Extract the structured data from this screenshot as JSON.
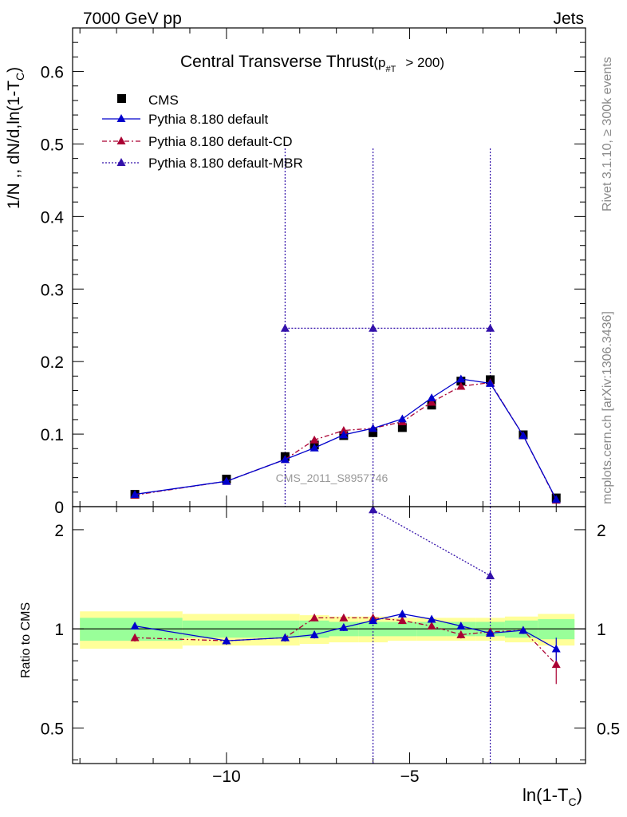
{
  "header": {
    "left": "7000 GeV pp",
    "right": "Jets"
  },
  "side_text": {
    "rivet": "Rivet 3.1.10, ≥ 300k events",
    "site": "mcplots.cern.ch [arXiv:1306.3436]"
  },
  "watermark": "CMS_2011_S8957746",
  "title": {
    "main": "Central Transverse Thrust",
    "paren_open": "(p",
    "sub": "#T",
    "rest": "> 200)"
  },
  "axis": {
    "ylabel_main": "1/N ,, dN/d,ln(1-T",
    "ylabel_sub": "C",
    "ylabel_close": ")",
    "xlabel_main": "ln(1-T",
    "xlabel_sub": "C",
    "xlabel_close": ")",
    "ratio_ylabel": "Ratio to CMS"
  },
  "legend": [
    {
      "label": "CMS",
      "style": "square",
      "color": "#000000"
    },
    {
      "label": "Pythia 8.180 default",
      "style": "solid",
      "color": "#0000cc"
    },
    {
      "label": "Pythia 8.180 default-CD",
      "style": "dashdot",
      "color": "#aa0033"
    },
    {
      "label": "Pythia 8.180 default-MBR",
      "style": "dotted",
      "color": "#3311aa"
    }
  ],
  "chart_data": {
    "type": "line",
    "title": "Central Transverse Thrust (p_T > 200)",
    "xlabel": "ln(1-T_C)",
    "ylabel": "1/N dN/d ln(1-T_C)",
    "xlim": [
      -14.2,
      -0.2
    ],
    "ylim": [
      0,
      0.66
    ],
    "ratio_ylim": [
      0.39,
      2.35
    ],
    "xticks": [
      -10,
      -5
    ],
    "yticks": [
      0,
      0.1,
      0.2,
      0.3,
      0.4,
      0.5,
      0.6
    ],
    "ytick_labels": [
      "0",
      "0.1",
      "0.2",
      "0.3",
      "0.4",
      "0.5",
      "0.6"
    ],
    "ratio_yticks": [
      0.5,
      1,
      2
    ],
    "ratio_ytick_labels": [
      "0.5",
      "1",
      "2"
    ],
    "x": [
      -12.5,
      -10.0,
      -8.4,
      -7.6,
      -6.8,
      -6.0,
      -5.2,
      -4.4,
      -3.6,
      -2.8,
      -1.9,
      -1.0
    ],
    "series": [
      {
        "name": "CMS",
        "values": [
          0.017,
          0.038,
          0.069,
          0.085,
          0.098,
          0.102,
          0.109,
          0.14,
          0.173,
          0.175,
          0.099,
          0.012
        ],
        "err": [
          0.002,
          0.002,
          0.003,
          0.004,
          0.004,
          0.004,
          0.005,
          0.005,
          0.006,
          0.006,
          0.004,
          0.001
        ]
      },
      {
        "name": "Pythia 8.180 default",
        "values": [
          0.017,
          0.035,
          0.065,
          0.081,
          0.099,
          0.108,
          0.121,
          0.15,
          0.176,
          0.17,
          0.098,
          0.01
        ],
        "ratio": [
          1.02,
          0.92,
          0.94,
          0.96,
          1.01,
          1.06,
          1.11,
          1.07,
          1.02,
          0.97,
          0.99,
          0.87
        ]
      },
      {
        "name": "Pythia 8.180 default-CD",
        "values": [
          0.016,
          0.035,
          0.065,
          0.092,
          0.105,
          0.108,
          0.117,
          0.144,
          0.166,
          0.171,
          0.098,
          0.009
        ],
        "ratio": [
          0.94,
          0.92,
          0.94,
          1.08,
          1.08,
          1.08,
          1.06,
          1.02,
          0.96,
          0.98,
          0.99,
          0.78
        ]
      },
      {
        "name": "Pythia 8.180 default-MBR",
        "values": [
          null,
          null,
          0.246,
          null,
          null,
          0.246,
          null,
          null,
          null,
          0.246,
          null,
          null
        ],
        "ratio": [
          null,
          null,
          null,
          null,
          null,
          2.3,
          null,
          null,
          null,
          1.45,
          null,
          null
        ]
      }
    ],
    "bands": {
      "edges": [
        -14.0,
        -11.2,
        -8.8,
        -8.0,
        -7.2,
        -6.4,
        -5.6,
        -4.8,
        -4.0,
        -3.2,
        -2.4,
        -1.5,
        -0.5
      ],
      "yellow": [
        0.13,
        0.11,
        0.11,
        0.1,
        0.09,
        0.09,
        0.08,
        0.08,
        0.08,
        0.08,
        0.09,
        0.11
      ],
      "green": [
        0.08,
        0.06,
        0.06,
        0.06,
        0.05,
        0.05,
        0.05,
        0.05,
        0.05,
        0.05,
        0.06,
        0.07
      ]
    }
  }
}
